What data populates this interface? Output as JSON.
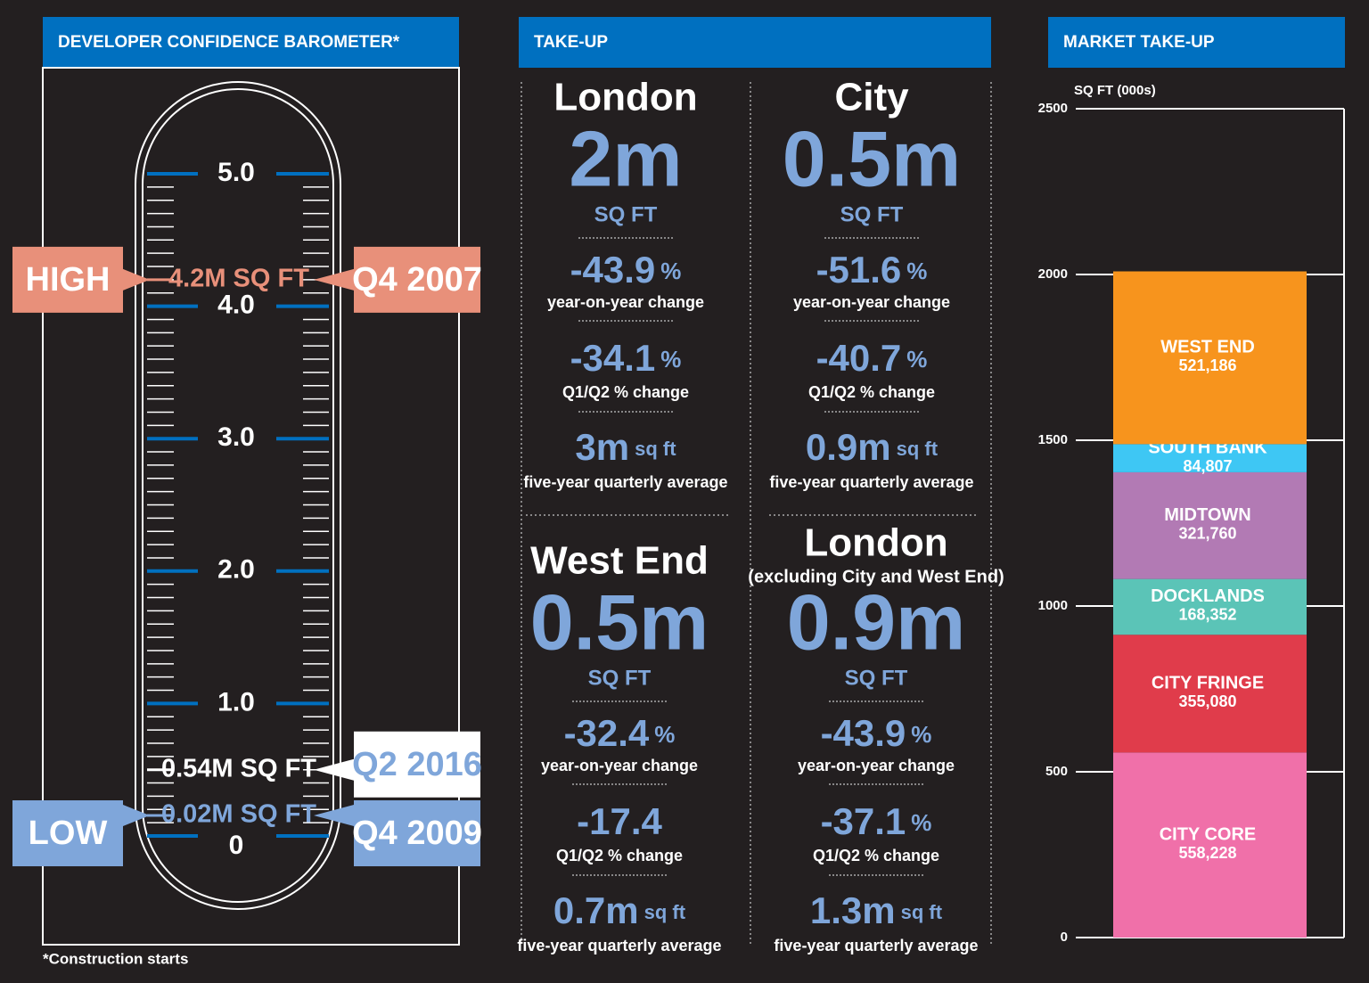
{
  "barometer": {
    "title": "DEVELOPER CONFIDENCE BAROMETER*",
    "footnote": "*Construction starts",
    "ylim": [
      0,
      5
    ],
    "ticks": [
      0,
      {
        "value": 1,
        "label": "1.0"
      },
      {
        "value": 2,
        "label": "2.0"
      },
      {
        "value": 3,
        "label": "3.0"
      },
      {
        "value": 4,
        "label": "4.0"
      },
      {
        "value": 5,
        "label": "5.0"
      }
    ],
    "minor_ticks": [
      0.1,
      0.2,
      0.3,
      0.4,
      0.5,
      0.6,
      0.7,
      0.8,
      0.9,
      1.1,
      1.2,
      1.3,
      1.4,
      1.5,
      1.6,
      1.7,
      1.8,
      1.9,
      2.1,
      2.2,
      2.3,
      2.4,
      2.5,
      2.6,
      2.7,
      2.8,
      2.9,
      3.1,
      3.2,
      3.3,
      3.4,
      3.5,
      3.6,
      3.7,
      3.8,
      3.9,
      4.1,
      4.2,
      4.3,
      4.4,
      4.5,
      4.6,
      4.7,
      4.8,
      4.9
    ],
    "markers": [
      {
        "tag": "HIGH",
        "value": 4.2,
        "label": "4.2M SQ FT",
        "date": "Q4 2007",
        "color": "#e8907a"
      },
      {
        "value": 0.54,
        "label": "0.54M SQ FT",
        "date": "Q2 2016",
        "color": "#ffffff"
      },
      {
        "tag": "LOW",
        "value": 0.02,
        "label": "0.02M SQ FT",
        "date": "Q4 2009",
        "color": "#7fa6da"
      }
    ]
  },
  "take_up": {
    "title": "TAKE-UP",
    "blocks": [
      {
        "region": "London",
        "value": "2m",
        "unit": "SQ FT",
        "yoy": "-43.9",
        "yoy_suffix": "%",
        "yoy_label": "year-on-year change",
        "q": "-34.1",
        "q_suffix": "%",
        "q_label": "Q1/Q2 % change",
        "avg": "3m",
        "avg_suffix": "sq ft",
        "avg_label": "five-year quarterly average"
      },
      {
        "region": "City",
        "value": "0.5m",
        "unit": "SQ FT",
        "yoy": "-51.6",
        "yoy_suffix": "%",
        "yoy_label": "year-on-year change",
        "q": "-40.7",
        "q_suffix": "%",
        "q_label": "Q1/Q2 % change",
        "avg": "0.9m",
        "avg_suffix": "sq ft",
        "avg_label": "five-year quarterly average"
      },
      {
        "region": "West End",
        "value": "0.5m",
        "unit": "SQ FT",
        "yoy": "-32.4",
        "yoy_suffix": "%",
        "yoy_label": "year-on-year change",
        "q": "-17.4",
        "q_label": "Q1/Q2 % change",
        "avg": "0.7m",
        "avg_suffix": "sq ft",
        "avg_label": "five-year quarterly average"
      },
      {
        "region": "London",
        "subtitle": "(excluding City and West End)",
        "value": "0.9m",
        "unit": "SQ FT",
        "yoy": "-43.9",
        "yoy_suffix": "%",
        "yoy_label": "year-on-year change",
        "q": "-37.1",
        "q_suffix": "%",
        "q_label": "Q1/Q2 % change",
        "avg": "1.3m",
        "avg_suffix": "sq ft",
        "avg_label": "five-year quarterly average"
      }
    ]
  },
  "chart_data": {
    "type": "stacked_bar",
    "title": "MARKET TAKE-UP",
    "ylabel": "SQ FT (000s)",
    "ylim": [
      0,
      2500
    ],
    "yticks": [
      0,
      500,
      1000,
      1500,
      2000,
      2500
    ],
    "series": [
      {
        "name": "CITY CORE",
        "color": "#f070a9",
        "values": [
          558.228
        ],
        "value_labels": [
          "558,228"
        ]
      },
      {
        "name": "CITY FRINGE",
        "color": "#e03c4b",
        "values": [
          355.08
        ],
        "value_labels": [
          "355,080"
        ]
      },
      {
        "name": "DOCKLANDS",
        "color": "#5bc4b7",
        "values": [
          168.352
        ],
        "value_labels": [
          "168,352"
        ]
      },
      {
        "name": "MIDTOWN",
        "color": "#b27ab4",
        "values": [
          321.76
        ],
        "value_labels": [
          "321,760"
        ]
      },
      {
        "name": "SOUTH BANK",
        "color": "#3ec7f4",
        "values": [
          84.807
        ],
        "value_labels": [
          "84,807"
        ]
      },
      {
        "name": "WEST END",
        "color": "#f7941d",
        "values": [
          521.186
        ],
        "value_labels": [
          "521,186"
        ]
      }
    ]
  }
}
